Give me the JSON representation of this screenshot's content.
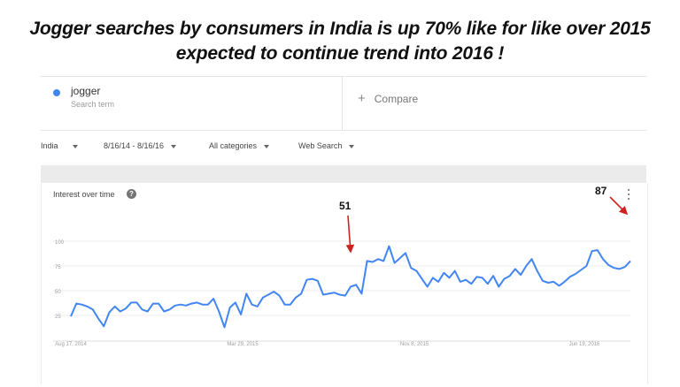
{
  "headline": {
    "line1": "Jogger searches by consumers in India is up 70% like for like over 2015",
    "line2": "expected to continue trend into 2016 !"
  },
  "search_term": {
    "term": "jogger",
    "subtitle": "Search term",
    "color": "#4285f4"
  },
  "compare": {
    "icon": "plus-icon",
    "label": "Compare"
  },
  "filters": {
    "region": "India",
    "date_range": "8/16/14 - 8/16/16",
    "category": "All categories",
    "search_type": "Web Search"
  },
  "panel": {
    "title": "Interest over time",
    "help_icon": "question-circle-icon",
    "menu_icon": "more-vert-icon"
  },
  "annotations": {
    "mid_value": "51",
    "end_value": "87",
    "arrow_color": "#cc2222"
  },
  "chart_data": {
    "type": "line",
    "y_ticks": [
      "100",
      "75",
      "50",
      "25"
    ],
    "ylim": [
      0,
      100
    ],
    "x_ticks": [
      "Aug 17, 2014",
      "Mar 29, 2015",
      "Nov 8, 2015",
      "Jun 19, 2016"
    ],
    "line_color": "#4285f4",
    "grid": true,
    "series": [
      {
        "values": [
          24,
          37,
          36,
          34,
          31,
          22,
          14,
          28,
          34,
          29,
          32,
          38,
          38,
          31,
          29,
          37,
          37,
          29,
          31,
          35,
          36,
          35,
          37,
          38,
          36,
          36,
          42,
          29,
          13,
          33,
          38,
          26,
          47,
          36,
          34,
          43,
          46,
          49,
          45,
          36,
          36,
          43,
          47,
          61,
          62,
          60,
          46,
          47,
          48,
          46,
          45,
          54,
          56,
          47,
          80,
          79,
          82,
          80,
          95,
          78,
          83,
          88,
          73,
          70,
          62,
          54,
          63,
          59,
          68,
          63,
          70,
          59,
          61,
          57,
          64,
          63,
          57,
          65,
          54,
          62,
          65,
          72,
          66,
          75,
          82,
          70,
          60,
          58,
          59,
          55,
          59,
          64,
          67,
          71,
          75,
          90,
          91,
          82,
          76,
          73,
          72,
          74,
          80
        ]
      }
    ]
  }
}
